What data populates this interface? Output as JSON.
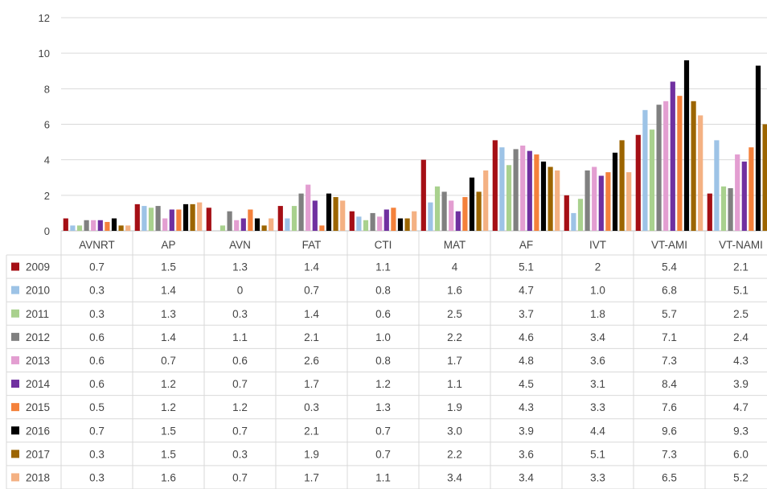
{
  "chart_data": {
    "type": "bar",
    "categories": [
      "AVNRT",
      "AP",
      "AVN",
      "FAT",
      "CTI",
      "MAT",
      "AF",
      "IVT",
      "VT-AMI",
      "VT-NAMI"
    ],
    "ylim": [
      0,
      12
    ],
    "yticks": [
      0,
      2,
      4,
      6,
      8,
      10,
      12
    ],
    "grid": true,
    "legend_position": "data-table-left",
    "series": [
      {
        "name": "2009",
        "color": "#a50f15",
        "values": [
          0.7,
          1.5,
          1.3,
          1.4,
          1.1,
          4,
          5.1,
          2,
          5.4,
          2.1
        ],
        "labels": [
          "0.7",
          "1.5",
          "1.3",
          "1.4",
          "1.1",
          "4",
          "5.1",
          "2",
          "5.4",
          "2.1"
        ]
      },
      {
        "name": "2010",
        "color": "#9dc3e6",
        "values": [
          0.3,
          1.4,
          0,
          0.7,
          0.8,
          1.6,
          4.7,
          1.0,
          6.8,
          5.1
        ],
        "labels": [
          "0.3",
          "1.4",
          "0",
          "0.7",
          "0.8",
          "1.6",
          "4.7",
          "1.0",
          "6.8",
          "5.1"
        ]
      },
      {
        "name": "2011",
        "color": "#a9d18e",
        "values": [
          0.3,
          1.3,
          0.3,
          1.4,
          0.6,
          2.5,
          3.7,
          1.8,
          5.7,
          2.5
        ],
        "labels": [
          "0.3",
          "1.3",
          "0.3",
          "1.4",
          "0.6",
          "2.5",
          "3.7",
          "1.8",
          "5.7",
          "2.5"
        ]
      },
      {
        "name": "2012",
        "color": "#808080",
        "values": [
          0.6,
          1.4,
          1.1,
          2.1,
          1.0,
          2.2,
          4.6,
          3.4,
          7.1,
          2.4
        ],
        "labels": [
          "0.6",
          "1.4",
          "1.1",
          "2.1",
          "1.0",
          "2.2",
          "4.6",
          "3.4",
          "7.1",
          "2.4"
        ]
      },
      {
        "name": "2013",
        "color": "#e39ed1",
        "values": [
          0.6,
          0.7,
          0.6,
          2.6,
          0.8,
          1.7,
          4.8,
          3.6,
          7.3,
          4.3
        ],
        "labels": [
          "0.6",
          "0.7",
          "0.6",
          "2.6",
          "0.8",
          "1.7",
          "4.8",
          "3.6",
          "7.3",
          "4.3"
        ]
      },
      {
        "name": "2014",
        "color": "#7030a0",
        "values": [
          0.6,
          1.2,
          0.7,
          1.7,
          1.2,
          1.1,
          4.5,
          3.1,
          8.4,
          3.9
        ],
        "labels": [
          "0.6",
          "1.2",
          "0.7",
          "1.7",
          "1.2",
          "1.1",
          "4.5",
          "3.1",
          "8.4",
          "3.9"
        ]
      },
      {
        "name": "2015",
        "color": "#f4813b",
        "values": [
          0.5,
          1.2,
          1.2,
          0.3,
          1.3,
          1.9,
          4.3,
          3.3,
          7.6,
          4.7
        ],
        "labels": [
          "0.5",
          "1.2",
          "1.2",
          "0.3",
          "1.3",
          "1.9",
          "4.3",
          "3.3",
          "7.6",
          "4.7"
        ]
      },
      {
        "name": "2016",
        "color": "#000000",
        "values": [
          0.7,
          1.5,
          0.7,
          2.1,
          0.7,
          3.0,
          3.9,
          4.4,
          9.6,
          9.3
        ],
        "labels": [
          "0.7",
          "1.5",
          "0.7",
          "2.1",
          "0.7",
          "3.0",
          "3.9",
          "4.4",
          "9.6",
          "9.3"
        ]
      },
      {
        "name": "2017",
        "color": "#9c6500",
        "values": [
          0.3,
          1.5,
          0.3,
          1.9,
          0.7,
          2.2,
          3.6,
          5.1,
          7.3,
          6.0
        ],
        "labels": [
          "0.3",
          "1.5",
          "0.3",
          "1.9",
          "0.7",
          "2.2",
          "3.6",
          "5.1",
          "7.3",
          "6.0"
        ]
      },
      {
        "name": "2018",
        "color": "#f4b183",
        "values": [
          0.3,
          1.6,
          0.7,
          1.7,
          1.1,
          3.4,
          3.4,
          3.3,
          6.5,
          5.2
        ],
        "labels": [
          "0.3",
          "1.6",
          "0.7",
          "1.7",
          "1.1",
          "3.4",
          "3.4",
          "3.3",
          "6.5",
          "5.2"
        ]
      }
    ]
  }
}
